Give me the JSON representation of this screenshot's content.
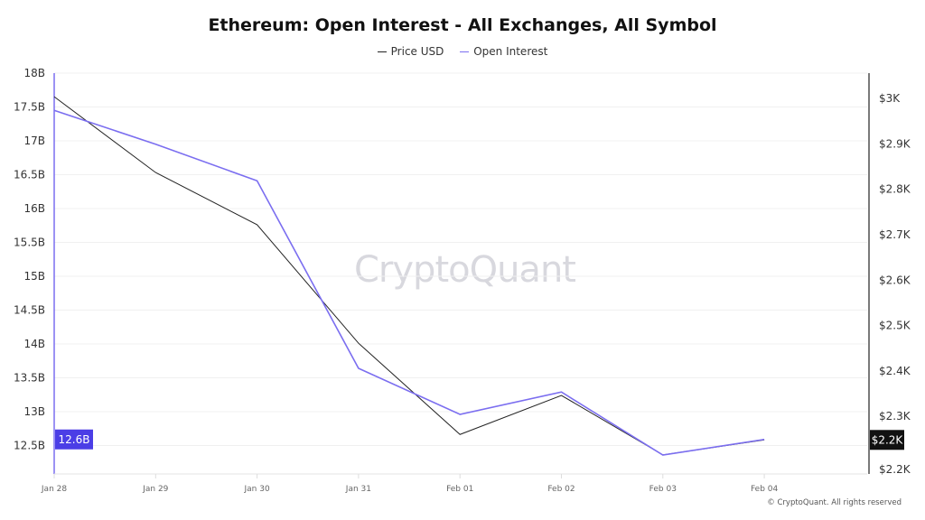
{
  "chart_data": {
    "type": "line",
    "title": "Ethereum: Open Interest - All Exchanges, All Symbol",
    "categories": [
      "Jan 28",
      "Jan 29",
      "Jan 30",
      "Jan 31",
      "Feb 01",
      "Feb 02",
      "Feb 03",
      "Feb 04"
    ],
    "series": [
      {
        "name": "Price USD",
        "axis": "right",
        "color": "#222222",
        "values": [
          3004,
          2837,
          2722,
          2461,
          2260,
          2346,
          2215,
          2248
        ]
      },
      {
        "name": "Open Interest",
        "axis": "left",
        "color": "#7b6ef0",
        "values": [
          17.45,
          16.95,
          16.41,
          13.64,
          12.96,
          13.29,
          12.36,
          12.59
        ]
      }
    ],
    "left_axis": {
      "ticks": [
        "18B",
        "17.5B",
        "17B",
        "16.5B",
        "16B",
        "15.5B",
        "15B",
        "14.5B",
        "14B",
        "13.5B",
        "13B",
        "12.5B"
      ],
      "tick_values": [
        18,
        17.5,
        17,
        16.5,
        16,
        15.5,
        15,
        14.5,
        14,
        13.5,
        13,
        12.5
      ],
      "range": [
        12.08,
        18
      ],
      "current_label": "12.6B",
      "current_value": 12.59
    },
    "right_axis": {
      "ticks": [
        "$3K",
        "$2.9K",
        "$2.8K",
        "$2.7K",
        "$2.6K",
        "$2.5K",
        "$2.4K",
        "$2.3K",
        "$2.2K"
      ],
      "tick_values": [
        3000,
        2900,
        2800,
        2700,
        2600,
        2500,
        2400,
        2300,
        2182
      ],
      "range": [
        2173,
        3056
      ],
      "current_label": "$2.2K",
      "current_value": 2248
    },
    "grid": true,
    "legend_position": "top-center"
  },
  "watermark": "CryptoQuant",
  "copyright": "© CryptoQuant. All rights reserved"
}
